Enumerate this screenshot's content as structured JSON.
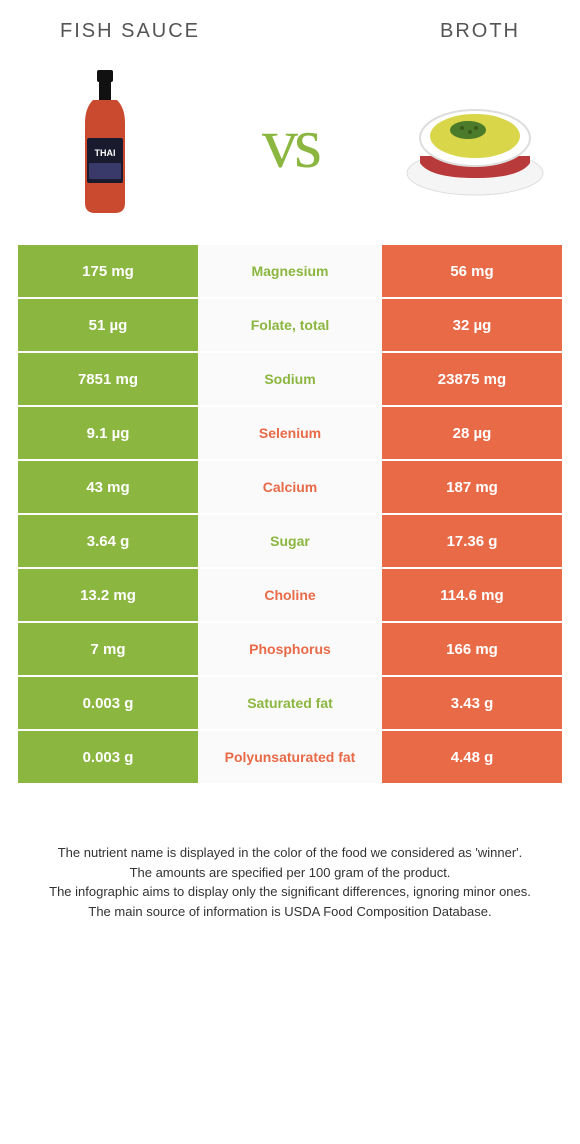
{
  "header": {
    "left": "Fish sauce",
    "right": "Broth"
  },
  "vs_text": "vs",
  "colors": {
    "green": "#8bb63f",
    "orange": "#e86a47",
    "row_bg": "#fafafa"
  },
  "rows": [
    {
      "left": "175 mg",
      "label": "Magnesium",
      "right": "56 mg",
      "winner": "left"
    },
    {
      "left": "51 µg",
      "label": "Folate, total",
      "right": "32 µg",
      "winner": "left"
    },
    {
      "left": "7851 mg",
      "label": "Sodium",
      "right": "23875 mg",
      "winner": "left"
    },
    {
      "left": "9.1 µg",
      "label": "Selenium",
      "right": "28 µg",
      "winner": "right"
    },
    {
      "left": "43 mg",
      "label": "Calcium",
      "right": "187 mg",
      "winner": "right"
    },
    {
      "left": "3.64 g",
      "label": "Sugar",
      "right": "17.36 g",
      "winner": "left"
    },
    {
      "left": "13.2 mg",
      "label": "Choline",
      "right": "114.6 mg",
      "winner": "right"
    },
    {
      "left": "7 mg",
      "label": "Phosphorus",
      "right": "166 mg",
      "winner": "right"
    },
    {
      "left": "0.003 g",
      "label": "Saturated fat",
      "right": "3.43 g",
      "winner": "left"
    },
    {
      "left": "0.003 g",
      "label": "Polyunsaturated fat",
      "right": "4.48 g",
      "winner": "right"
    }
  ],
  "footer": {
    "line1": "The nutrient name is displayed in the color of the food we considered as 'winner'.",
    "line2": "The amounts are specified per 100 gram of the product.",
    "line3": "The infographic aims to display only the significant differences, ignoring minor ones.",
    "line4": "The main source of information is USDA Food Composition Database."
  }
}
